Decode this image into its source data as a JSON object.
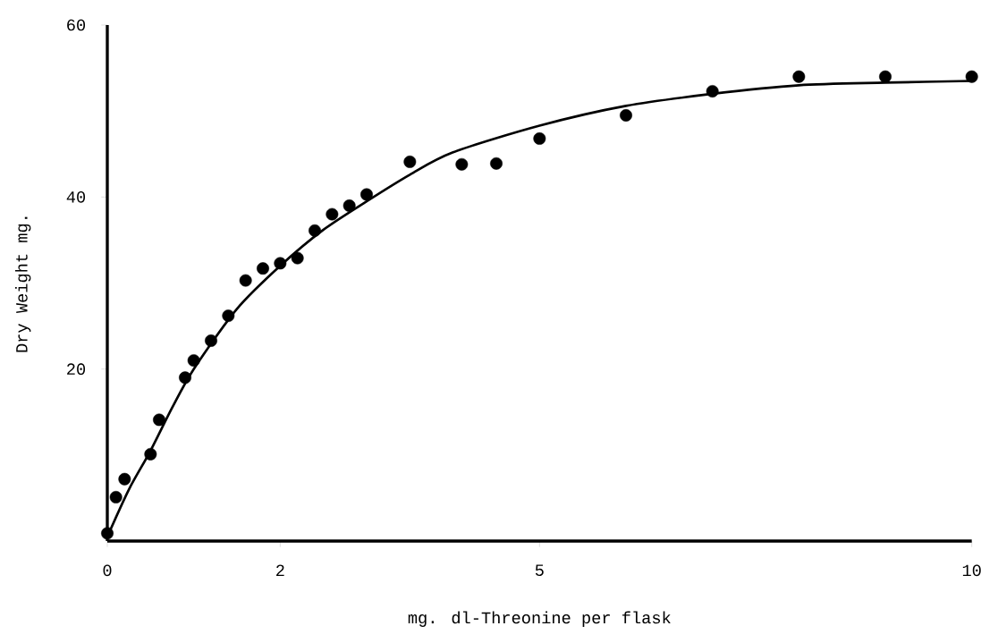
{
  "chart_data": {
    "type": "scatter",
    "xlabel": "mg. dl-Threonine per flask",
    "ylabel": "Dry Weight mg.",
    "xlim": [
      0,
      10
    ],
    "ylim": [
      0,
      60
    ],
    "xticks": [
      0,
      2,
      5,
      10
    ],
    "yticks": [
      20,
      40,
      60
    ],
    "grid": false,
    "series": [
      {
        "color": "#000000",
        "marker": "circle",
        "x": [
          0,
          0.1,
          0.2,
          0.5,
          0.6,
          0.9,
          1.0,
          1.2,
          1.4,
          1.6,
          1.8,
          2.0,
          2.2,
          2.4,
          2.6,
          2.8,
          3.0,
          3.5,
          4.1,
          4.5,
          5.0,
          6.0,
          7.0,
          8.0,
          9.0,
          10.0
        ],
        "values": [
          0.9,
          5.1,
          7.2,
          10.1,
          14.1,
          19.0,
          21.0,
          23.3,
          26.2,
          30.3,
          31.7,
          32.3,
          32.9,
          36.1,
          38.0,
          39.0,
          40.3,
          44.1,
          43.8,
          43.9,
          46.8,
          49.5,
          52.3,
          54.0,
          54.0,
          54.0
        ]
      },
      {
        "type": "line",
        "color": "#000000",
        "marker": "none",
        "x": [
          0,
          0.25,
          0.5,
          0.75,
          1,
          1.5,
          2,
          2.5,
          3,
          3.5,
          4,
          5,
          6,
          7,
          8,
          9,
          10
        ],
        "values": [
          0.5,
          6,
          10.5,
          15.5,
          20,
          27,
          32,
          36.2,
          39.5,
          42.6,
          45.2,
          48.3,
          50.6,
          52,
          53,
          53.3,
          53.5
        ]
      }
    ]
  }
}
